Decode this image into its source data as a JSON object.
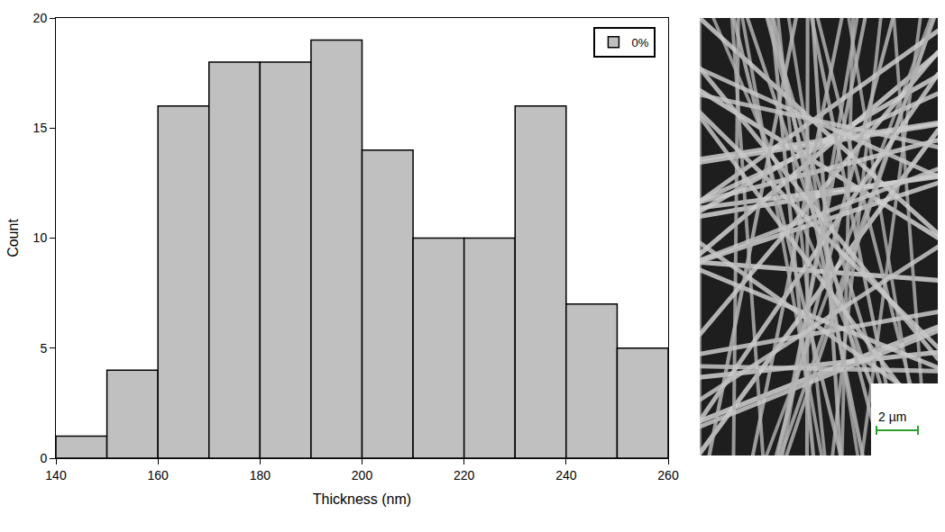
{
  "chart_data": {
    "type": "histogram",
    "x_label": "Thickness (nm)",
    "y_label": "Count",
    "bins": [
      140,
      150,
      160,
      170,
      180,
      190,
      200,
      210,
      220,
      230,
      240,
      250,
      260
    ],
    "series": [
      {
        "name": "0%",
        "color": "#c0c0c0",
        "values": [
          1,
          4,
          16,
          18,
          18,
          19,
          14,
          10,
          10,
          16,
          7,
          5
        ]
      }
    ],
    "xlim": [
      140,
      260
    ],
    "xticks": [
      140,
      160,
      180,
      200,
      220,
      240,
      260
    ],
    "ylim": [
      0,
      20
    ],
    "yticks": [
      0,
      5,
      10,
      15,
      20
    ],
    "grid": false,
    "legend": "upper right"
  },
  "micrograph": {
    "scale_bar": "2 µm"
  }
}
